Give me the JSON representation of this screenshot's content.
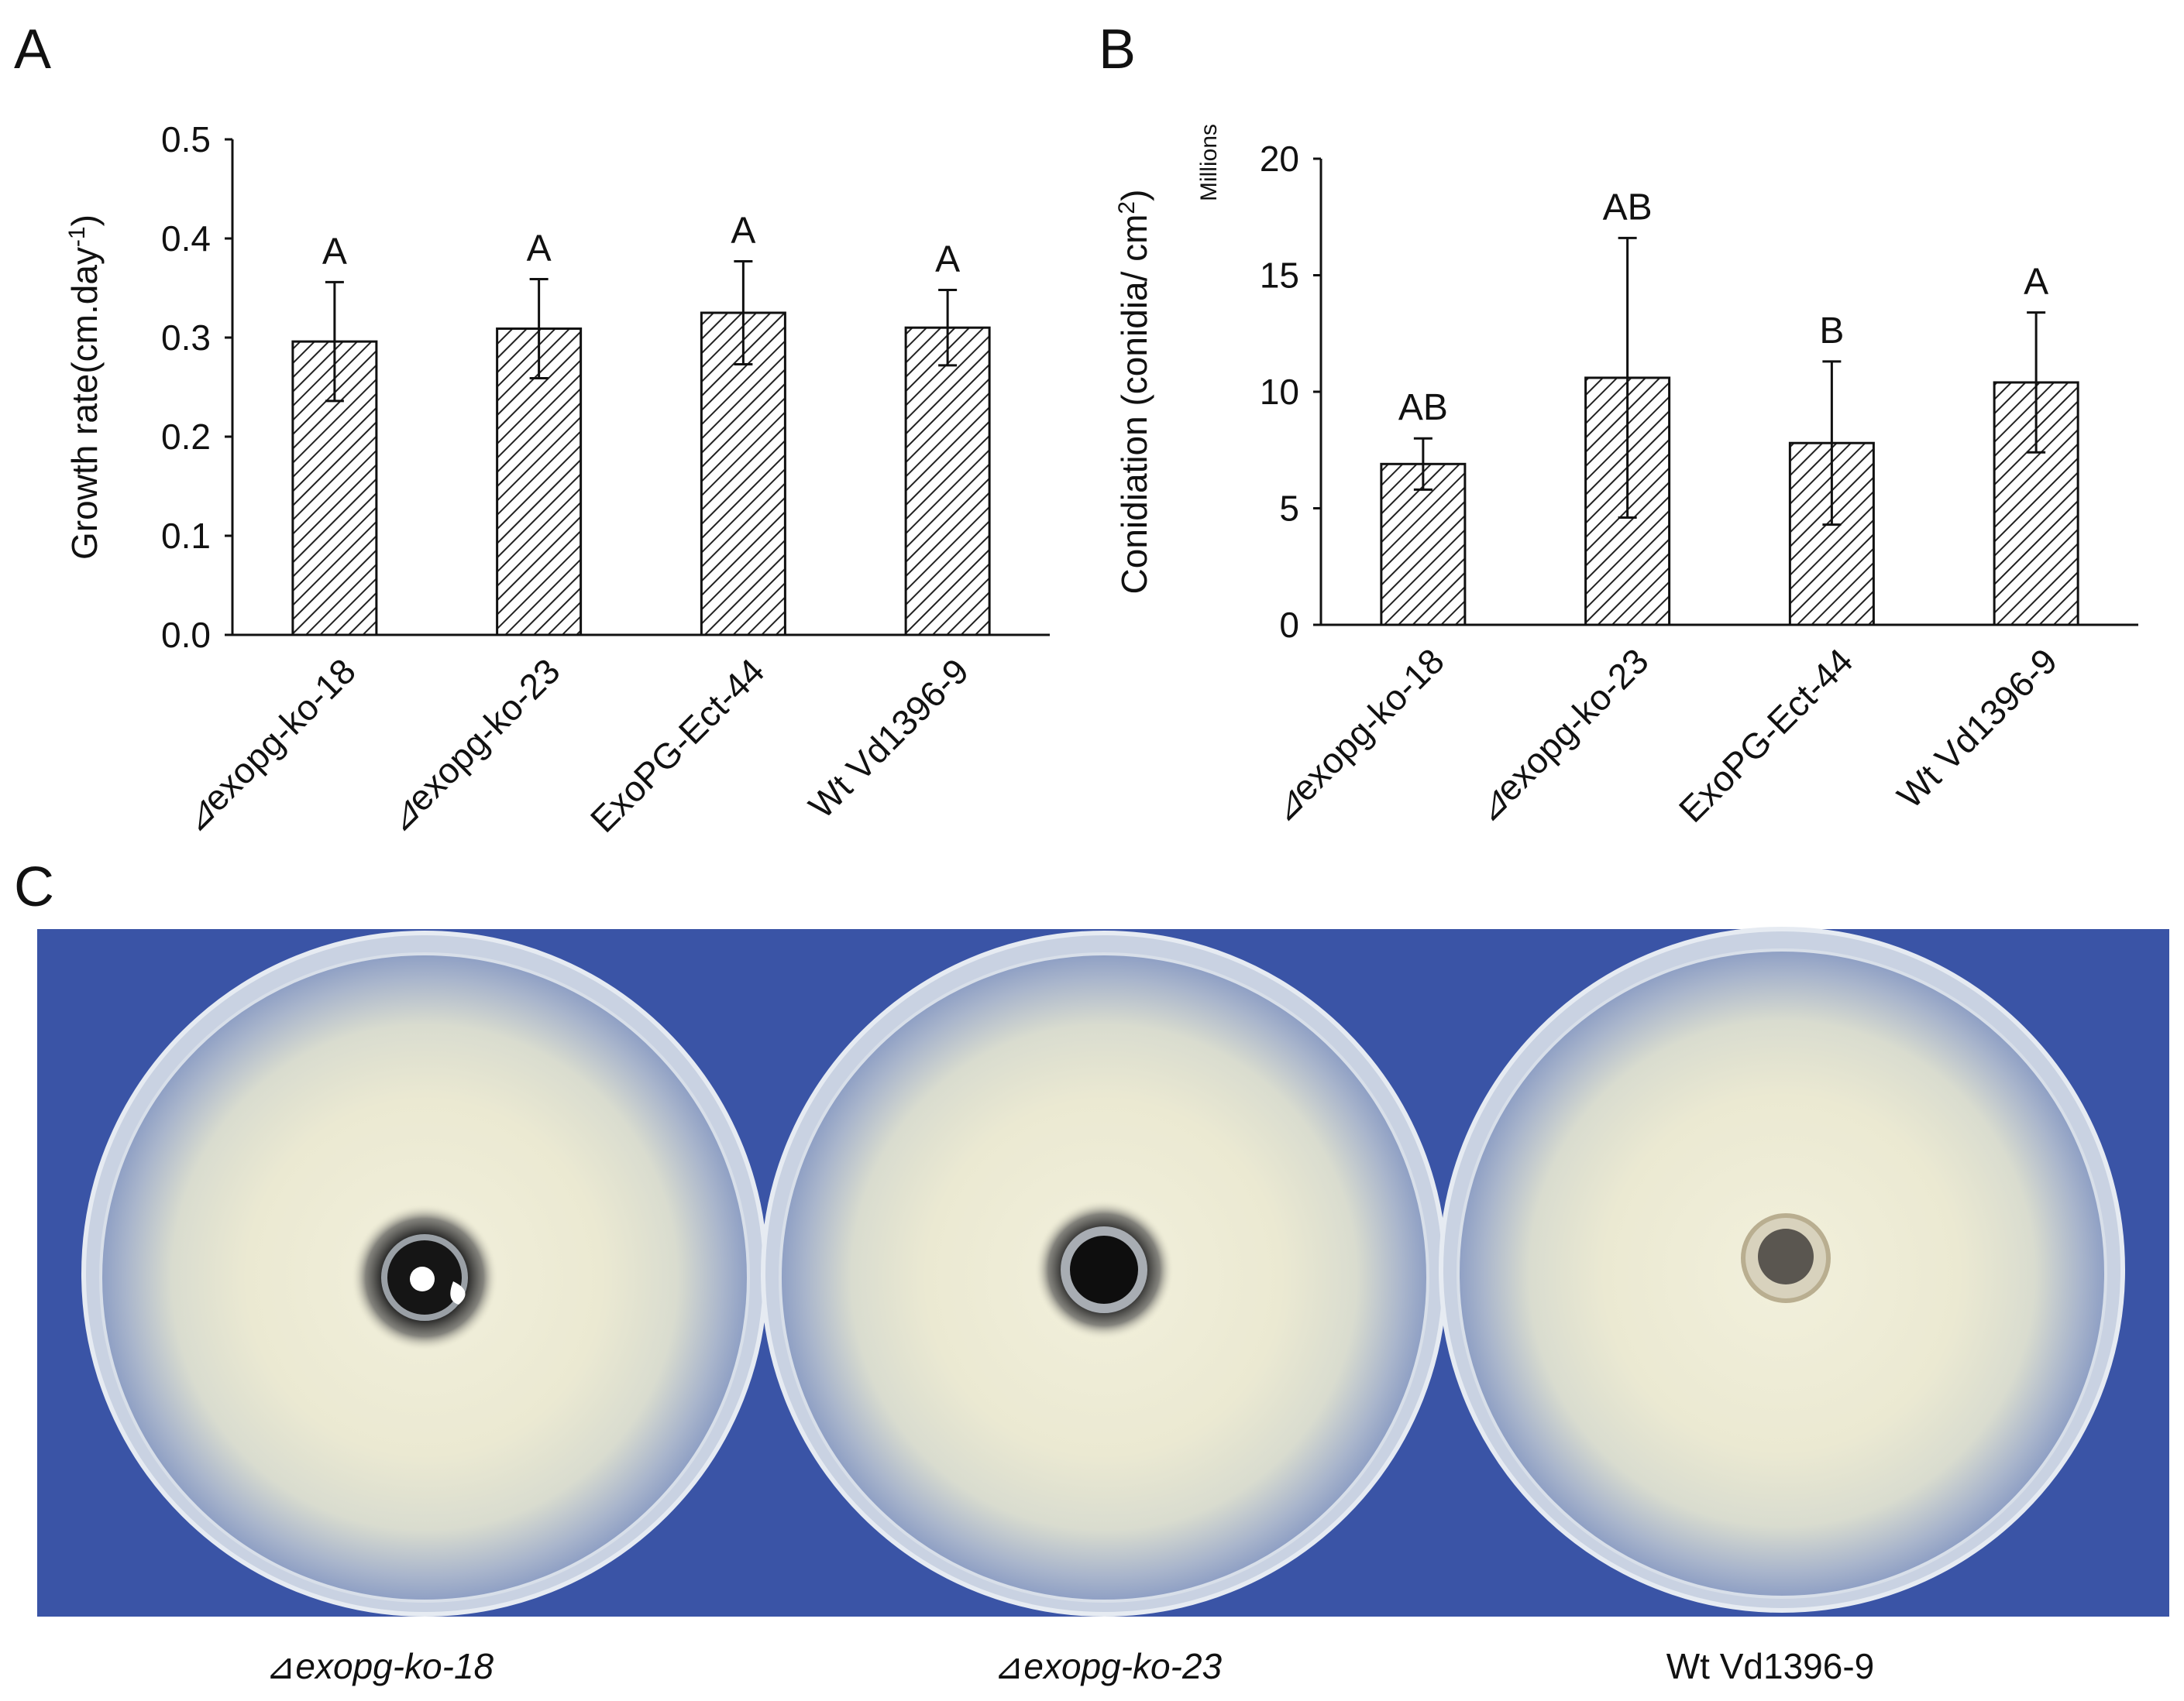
{
  "panels": {
    "a_letter": "A",
    "b_letter": "B",
    "c_letter": "C"
  },
  "chart_data": [
    {
      "type": "bar",
      "panel": "A",
      "title": "",
      "xlabel": "",
      "ylabel": "Growth rate(cm.day",
      "ylabel_superscript": "-1",
      "ylabel_suffix": ")",
      "ylim": [
        0,
        0.5
      ],
      "yticks": [
        "0.0",
        "0.1",
        "0.2",
        "0.3",
        "0.4",
        "0.5"
      ],
      "ytick_values": [
        0,
        0.1,
        0.2,
        0.3,
        0.4,
        0.5
      ],
      "categories": [
        "Δexopg-ko-18",
        "Δexopg-ko-23",
        "ExoPG-Ect-44",
        "Wt Vd1396-9"
      ],
      "category_prefix": [
        "⊿",
        "⊿",
        "",
        ""
      ],
      "category_text": [
        "exopg-ko-18",
        "exopg-ko-23",
        "ExoPG-Ect-44",
        "Wt Vd1396-9"
      ],
      "values": [
        0.296,
        0.309,
        0.325,
        0.31
      ],
      "errors": [
        0.06,
        0.05,
        0.052,
        0.038
      ],
      "group_letters": [
        "A",
        "A",
        "A",
        "A"
      ],
      "fill_pattern": "diagonal-hatch"
    },
    {
      "type": "bar",
      "panel": "B",
      "title": "",
      "xlabel": "",
      "ylabel": "Conidiation (conidia/ cm",
      "ylabel_superscript": "2",
      "ylabel_suffix": ")",
      "units_label": "Millions",
      "ylim": [
        0,
        20
      ],
      "yticks": [
        "0",
        "5",
        "10",
        "15",
        "20"
      ],
      "ytick_values": [
        0,
        5,
        10,
        15,
        20
      ],
      "categories": [
        "Δexopg-ko-18",
        "Δexopg-ko-23",
        "ExoPG-Ect-44",
        "Wt Vd1396-9"
      ],
      "category_prefix": [
        "⊿",
        "⊿",
        "",
        ""
      ],
      "category_text": [
        "exopg-ko-18",
        "exopg-ko-23",
        "ExoPG-Ect-44",
        "Wt Vd1396-9"
      ],
      "values": [
        6.9,
        10.6,
        7.8,
        10.4
      ],
      "errors": [
        1.1,
        6.0,
        3.5,
        3.0
      ],
      "group_letters": [
        "AB",
        "AB",
        "B",
        "A"
      ],
      "fill_pattern": "diagonal-hatch"
    }
  ],
  "photo": {
    "background_color": "#3a54a6",
    "plate_labels": [
      {
        "prefix": "⊿",
        "text": "exopg-ko-18",
        "italic": true
      },
      {
        "prefix": "⊿",
        "text": "exopg-ko-23",
        "italic": true
      },
      {
        "prefix": "",
        "text": "Wt Vd1396-9",
        "italic": false
      }
    ]
  }
}
